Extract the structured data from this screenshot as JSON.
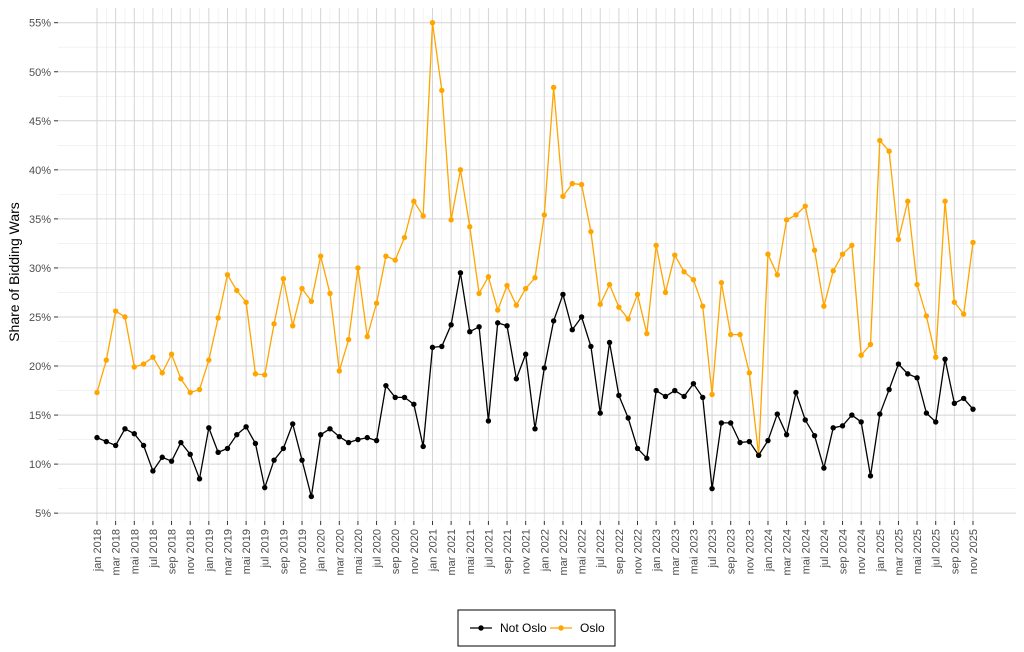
{
  "chart_data": {
    "type": "line",
    "title": "",
    "xlabel": "",
    "ylabel": "Share of Bidding Wars",
    "ylim": [
      4.2,
      56.5
    ],
    "y_ticks": [
      "5%",
      "10%",
      "15%",
      "20%",
      "25%",
      "30%",
      "35%",
      "40%",
      "45%",
      "50%",
      "55%"
    ],
    "y_tick_values": [
      5,
      10,
      15,
      20,
      25,
      30,
      35,
      40,
      45,
      50,
      55
    ],
    "x_tick_labels": [
      "jan 2018",
      "mar 2018",
      "mai 2018",
      "jul 2018",
      "sep 2018",
      "nov 2018",
      "jan 2019",
      "mar 2019",
      "mai 2019",
      "jul 2019",
      "sep 2019",
      "nov 2019",
      "jan 2020",
      "mar 2020",
      "mai 2020",
      "jul 2020",
      "sep 2020",
      "nov 2020",
      "jan 2021",
      "mar 2021",
      "mai 2021",
      "jul 2021",
      "sep 2021",
      "nov 2021",
      "jan 2022",
      "mar 2022",
      "mai 2022",
      "jul 2022",
      "sep 2022",
      "nov 2022",
      "jan 2023",
      "mar 2023",
      "mai 2023",
      "jul 2023",
      "sep 2023",
      "nov 2023",
      "jan 2024",
      "mar 2024",
      "mai 2024",
      "jul 2024",
      "sep 2024",
      "nov 2024",
      "jan 2025",
      "mar 2025",
      "mai 2025",
      "jul 2025",
      "sep 2025",
      "nov 2025"
    ],
    "x_start": "2018-01",
    "x_end": "2025-11",
    "legend_position": "bottom",
    "grid": true,
    "series": [
      {
        "name": "Not Oslo",
        "color": "#000000",
        "values": [
          12.7,
          12.3,
          11.9,
          13.6,
          13.1,
          11.9,
          9.3,
          10.7,
          10.3,
          12.2,
          11.0,
          8.5,
          13.7,
          11.2,
          11.6,
          13.0,
          13.8,
          12.1,
          7.6,
          10.4,
          11.6,
          14.1,
          10.4,
          6.7,
          13.0,
          13.6,
          12.8,
          12.2,
          12.5,
          12.7,
          12.4,
          18.0,
          16.8,
          16.8,
          16.1,
          11.8,
          21.9,
          22.0,
          24.2,
          29.5,
          23.5,
          24.0,
          14.4,
          24.4,
          24.1,
          18.7,
          21.2,
          13.6,
          19.8,
          24.6,
          27.3,
          23.7,
          25.0,
          22.0,
          15.2,
          22.4,
          17.0,
          14.7,
          11.6,
          10.6,
          17.5,
          16.9,
          17.5,
          16.9,
          18.2,
          16.8,
          7.5,
          14.2,
          14.2,
          12.2,
          12.3,
          10.9,
          12.4,
          15.1,
          13.0,
          17.3,
          14.5,
          12.9,
          9.6,
          13.7,
          13.9,
          15.0,
          14.3,
          8.8,
          15.1,
          17.6,
          20.2,
          19.2,
          18.8,
          15.2,
          14.3,
          20.7,
          16.2,
          16.7,
          15.6
        ]
      },
      {
        "name": "Oslo",
        "color": "#FFA500",
        "values": [
          17.3,
          20.6,
          25.6,
          25.0,
          19.9,
          20.2,
          20.9,
          19.3,
          21.2,
          18.7,
          17.3,
          17.6,
          20.6,
          24.9,
          29.3,
          27.7,
          26.5,
          19.2,
          19.1,
          24.3,
          28.9,
          24.1,
          27.9,
          26.6,
          31.2,
          27.4,
          19.5,
          22.7,
          30.0,
          23.0,
          26.4,
          31.2,
          30.8,
          33.1,
          36.8,
          35.3,
          55.0,
          48.1,
          34.9,
          40.0,
          34.2,
          27.4,
          29.1,
          25.7,
          28.2,
          26.2,
          27.9,
          29.0,
          35.4,
          48.4,
          37.3,
          38.6,
          38.5,
          33.7,
          26.3,
          28.3,
          26.0,
          24.8,
          27.3,
          23.3,
          32.3,
          27.5,
          31.3,
          29.6,
          28.8,
          26.1,
          17.1,
          28.5,
          23.2,
          23.2,
          19.3,
          10.9,
          31.4,
          29.3,
          34.9,
          35.4,
          36.3,
          31.8,
          26.1,
          29.7,
          31.4,
          32.3,
          21.1,
          22.2,
          43.0,
          41.9,
          32.9,
          36.8,
          28.3,
          25.1,
          20.9,
          36.8,
          26.5,
          25.3,
          32.6
        ]
      }
    ]
  }
}
